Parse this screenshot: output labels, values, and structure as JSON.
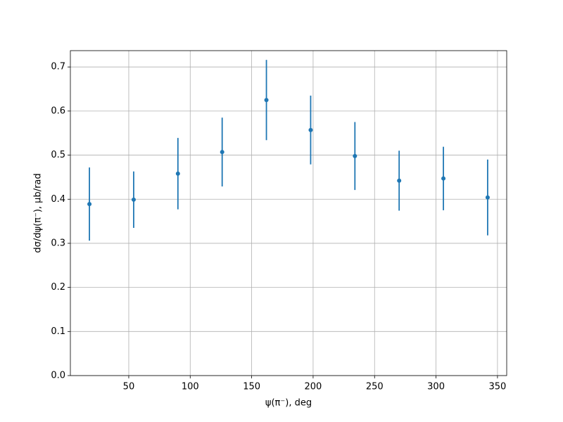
{
  "chart_data": {
    "type": "errorbar",
    "x_label": "ψ(π⁻), deg",
    "y_label": "dσ/dψ(π⁻), μb/rad",
    "x": [
      18,
      54,
      90,
      126,
      162,
      198,
      234,
      270,
      306,
      342
    ],
    "values": [
      0.389,
      0.399,
      0.458,
      0.507,
      0.625,
      0.557,
      0.498,
      0.442,
      0.447,
      0.404
    ],
    "errors": [
      0.083,
      0.064,
      0.081,
      0.078,
      0.091,
      0.078,
      0.077,
      0.068,
      0.072,
      0.086
    ],
    "color": "#1f77b4",
    "xlim": [
      2.5,
      357.5
    ],
    "ylim": [
      0,
      0.737
    ],
    "xticks": [
      50,
      100,
      150,
      200,
      250,
      300,
      350
    ],
    "yticks": [
      {
        "value": 0,
        "label": "0.0"
      },
      0.1,
      0.2,
      0.3,
      0.4,
      0.5,
      0.6,
      0.7
    ],
    "grid": true
  }
}
